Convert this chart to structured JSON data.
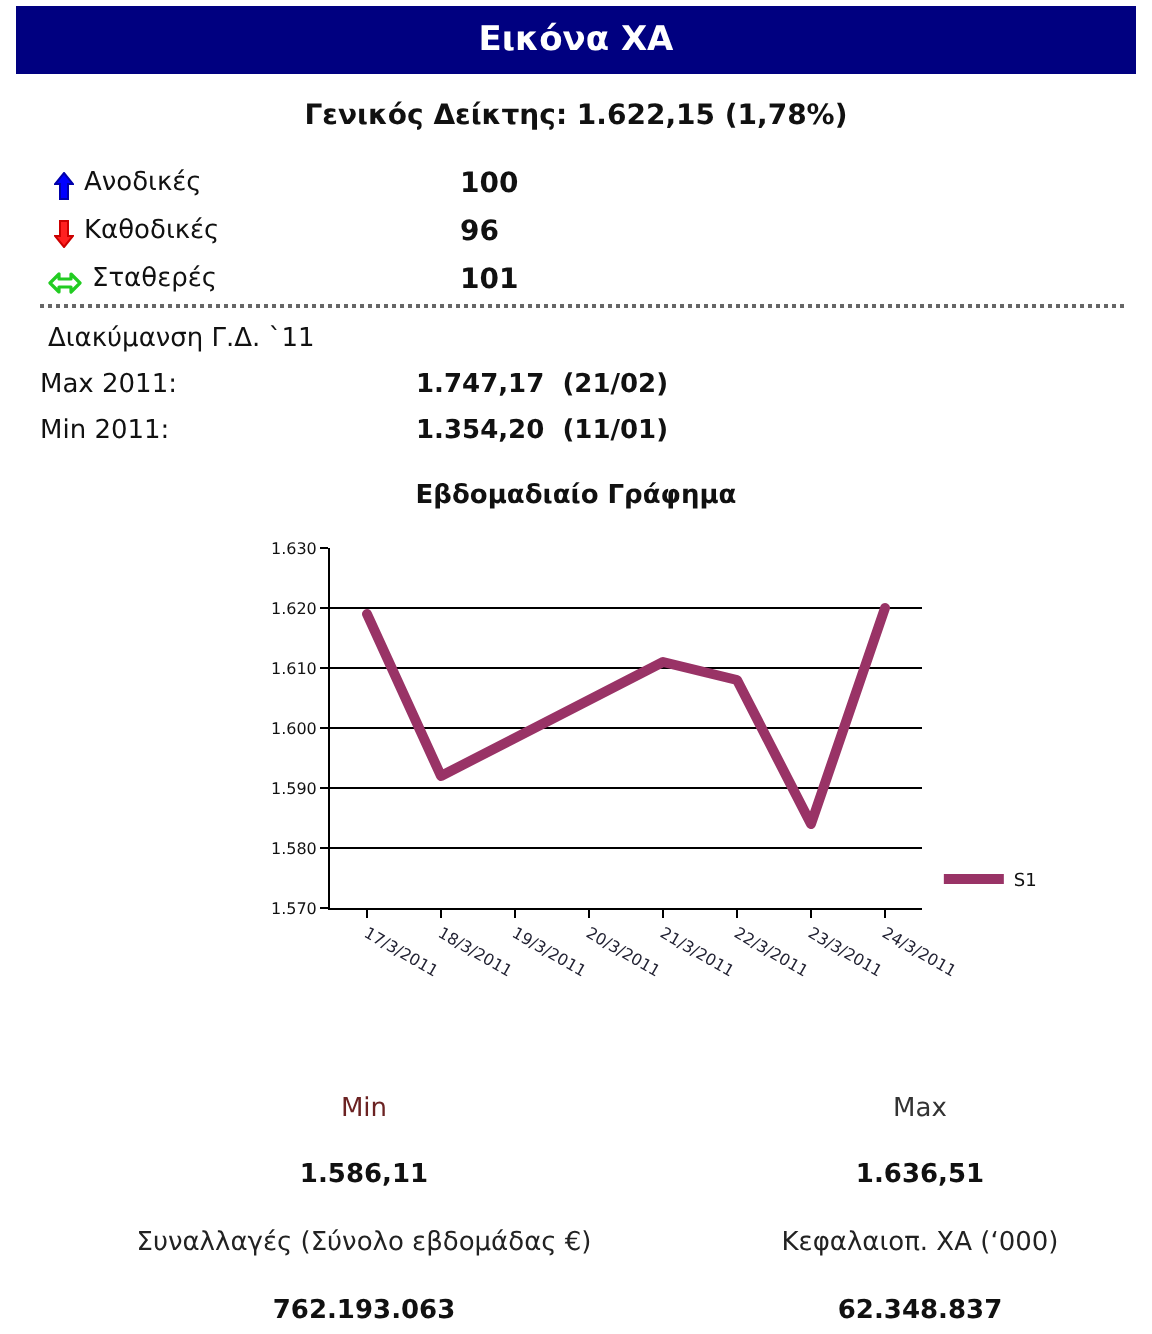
{
  "chart_data": [
    {
      "type": "other",
      "title": "Εικόνα ΧΑ",
      "annotations": [
        "Γενικός Δείκτης: 1.622,15 (1,78%)",
        "Ανοδικές",
        "100",
        "Καθοδικές",
        "96",
        "Σταθερές",
        "101",
        "Διακύμανση Γ.Δ. `11",
        "Max 2011:",
        "1.747,17  (21/02)",
        "Min 2011:",
        "1.354,20  (11/01)"
      ]
    },
    {
      "type": "line",
      "title": "Εβδομαδιαίο Γράφημα",
      "x": [
        "2011-03-17",
        "2011-03-18",
        "2011-03-21",
        "2011-03-22",
        "2011-03-23",
        "2011-03-24"
      ],
      "xlim": [
        "2011-03-16T12:00",
        "2011-03-24T12:00"
      ],
      "xticks": [
        {
          "value": "2011-03-17",
          "label": "17/3/2011"
        },
        {
          "value": "2011-03-18",
          "label": "18/3/2011"
        },
        {
          "value": "2011-03-19",
          "label": "19/3/2011"
        },
        {
          "value": "2011-03-20",
          "label": "20/3/2011"
        },
        {
          "value": "2011-03-21",
          "label": "21/3/2011"
        },
        {
          "value": "2011-03-22",
          "label": "22/3/2011"
        },
        {
          "value": "2011-03-23",
          "label": "23/3/2011"
        },
        {
          "value": "2011-03-24",
          "label": "24/3/2011"
        }
      ],
      "ylim": [
        1570,
        1630
      ],
      "yticks": [
        {
          "value": 1570,
          "label": "1.570"
        },
        {
          "value": 1580,
          "label": "1.580"
        },
        {
          "value": 1590,
          "label": "1.590"
        },
        {
          "value": 1600,
          "label": "1.600"
        },
        {
          "value": 1610,
          "label": "1.610"
        },
        {
          "value": 1620,
          "label": "1.620"
        },
        {
          "value": 1630,
          "label": "1.630"
        }
      ],
      "series": [
        {
          "name": "S1",
          "color": "#993366",
          "values": [
            1619,
            1592,
            1611,
            1608,
            1584,
            1620
          ]
        }
      ],
      "grid": "y",
      "legend": "bottom right"
    },
    {
      "type": "other",
      "annotations": [
        "Min",
        "Max",
        "1.586,11",
        "1.636,51",
        "Συναλλαγές (Σύνολο εβδομάδας €)",
        "Κεφαλαιοπ. ΧΑ (‘000)",
        "762.193.063",
        "62.348.837"
      ]
    }
  ]
}
